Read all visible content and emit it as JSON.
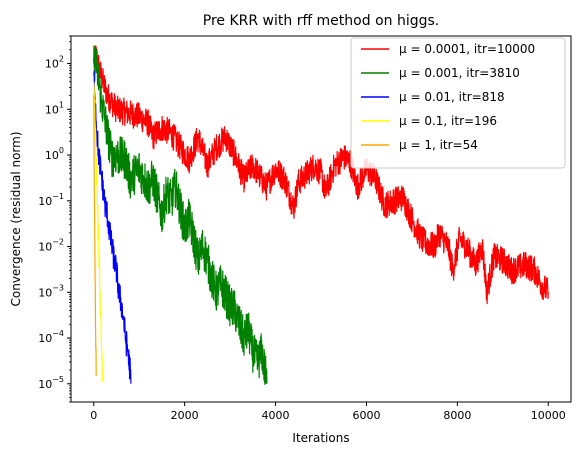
{
  "chart_data": {
    "type": "line",
    "title": "Pre KRR with rff method on higgs.",
    "xlabel": "Iterations",
    "ylabel": "Convergence (residual norm)",
    "xlim": [
      -500,
      10500
    ],
    "ylim": [
      4e-06,
      400
    ],
    "yscale": "log",
    "grid": false,
    "legend_position": "top-right",
    "xticks": [
      0,
      2000,
      4000,
      6000,
      8000,
      10000
    ],
    "xtick_labels": [
      "0",
      "2000",
      "4000",
      "6000",
      "8000",
      "10000"
    ],
    "yticks": [
      1e-05,
      0.0001,
      0.001,
      0.01,
      0.1,
      1,
      10,
      100
    ],
    "ytick_mantissa": "10",
    "ytick_exponents": [
      "−5",
      "−4",
      "−3",
      "−2",
      "−1",
      "0",
      "1",
      "2"
    ],
    "series": [
      {
        "name": "μ = 0.0001, itr=10000",
        "color": "#ff0000",
        "noise": 0.3,
        "points": [
          [
            0,
            100
          ],
          [
            50,
            150
          ],
          [
            150,
            60
          ],
          [
            300,
            20
          ],
          [
            500,
            10
          ],
          [
            800,
            8
          ],
          [
            1000,
            7
          ],
          [
            1200,
            5
          ],
          [
            1300,
            2.5
          ],
          [
            1500,
            4
          ],
          [
            1700,
            3
          ],
          [
            1900,
            1.5
          ],
          [
            2100,
            0.8
          ],
          [
            2300,
            2.5
          ],
          [
            2500,
            0.6
          ],
          [
            2700,
            1.5
          ],
          [
            2900,
            2.5
          ],
          [
            3100,
            1.0
          ],
          [
            3300,
            0.3
          ],
          [
            3500,
            0.6
          ],
          [
            3800,
            0.2
          ],
          [
            4000,
            0.5
          ],
          [
            4200,
            0.3
          ],
          [
            4400,
            0.07
          ],
          [
            4500,
            0.25
          ],
          [
            4700,
            0.4
          ],
          [
            4850,
            0.6
          ],
          [
            5000,
            0.4
          ],
          [
            5100,
            0.15
          ],
          [
            5300,
            0.6
          ],
          [
            5500,
            0.9
          ],
          [
            5650,
            0.7
          ],
          [
            5800,
            0.2
          ],
          [
            6000,
            0.5
          ],
          [
            6200,
            0.3
          ],
          [
            6400,
            0.08
          ],
          [
            6600,
            0.1
          ],
          [
            6800,
            0.12
          ],
          [
            7000,
            0.04
          ],
          [
            7200,
            0.015
          ],
          [
            7300,
            0.012
          ],
          [
            7500,
            0.01
          ],
          [
            7600,
            0.02
          ],
          [
            7800,
            0.01
          ],
          [
            7900,
            0.003
          ],
          [
            8050,
            0.015
          ],
          [
            8200,
            0.01
          ],
          [
            8400,
            0.004
          ],
          [
            8550,
            0.01
          ],
          [
            8650,
            0.001
          ],
          [
            8800,
            0.006
          ],
          [
            9000,
            0.005
          ],
          [
            9200,
            0.003
          ],
          [
            9500,
            0.004
          ],
          [
            9700,
            0.003
          ],
          [
            9850,
            0.0015
          ],
          [
            10000,
            0.001
          ]
        ]
      },
      {
        "name": "μ = 0.001, itr=3810",
        "color": "#008000",
        "noise": 0.45,
        "points": [
          [
            0,
            100
          ],
          [
            50,
            110
          ],
          [
            150,
            20
          ],
          [
            300,
            3
          ],
          [
            400,
            0.9
          ],
          [
            500,
            1.0
          ],
          [
            700,
            0.8
          ],
          [
            800,
            0.3
          ],
          [
            1000,
            0.5
          ],
          [
            1200,
            0.2
          ],
          [
            1300,
            0.3
          ],
          [
            1500,
            0.05
          ],
          [
            1600,
            0.15
          ],
          [
            1700,
            0.1
          ],
          [
            1800,
            0.2
          ],
          [
            2000,
            0.025
          ],
          [
            2100,
            0.04
          ],
          [
            2200,
            0.015
          ],
          [
            2300,
            0.005
          ],
          [
            2400,
            0.01
          ],
          [
            2500,
            0.005
          ],
          [
            2600,
            0.002
          ],
          [
            2700,
            0.001
          ],
          [
            2800,
            0.0015
          ],
          [
            3000,
            0.0005
          ],
          [
            3100,
            0.0004
          ],
          [
            3200,
            0.0002
          ],
          [
            3300,
            0.0001
          ],
          [
            3400,
            0.00015
          ],
          [
            3500,
            5e-05
          ],
          [
            3600,
            3e-05
          ],
          [
            3700,
            5e-05
          ],
          [
            3810,
            1e-05
          ]
        ]
      },
      {
        "name": "μ = 0.01, itr=818",
        "color": "#0000ff",
        "noise": 0.3,
        "points": [
          [
            0,
            60
          ],
          [
            20,
            30
          ],
          [
            60,
            5
          ],
          [
            100,
            1.2
          ],
          [
            150,
            0.5
          ],
          [
            200,
            0.2
          ],
          [
            250,
            0.08
          ],
          [
            300,
            0.05
          ],
          [
            350,
            0.02
          ],
          [
            400,
            0.01
          ],
          [
            450,
            0.005
          ],
          [
            500,
            0.003
          ],
          [
            550,
            0.001
          ],
          [
            600,
            0.0006
          ],
          [
            650,
            0.0003
          ],
          [
            700,
            0.0001
          ],
          [
            750,
            5e-05
          ],
          [
            800,
            2e-05
          ],
          [
            818,
            1e-05
          ]
        ]
      },
      {
        "name": "μ = 0.1, itr=196",
        "color": "#ffff00",
        "noise": 0.35,
        "points": [
          [
            0,
            40
          ],
          [
            20,
            10
          ],
          [
            40,
            2
          ],
          [
            60,
            0.5
          ],
          [
            80,
            0.08
          ],
          [
            100,
            0.02
          ],
          [
            120,
            0.005
          ],
          [
            140,
            0.0008
          ],
          [
            160,
            0.0002
          ],
          [
            180,
            5e-05
          ],
          [
            196,
            1.2e-05
          ]
        ]
      },
      {
        "name": "μ = 1, itr=54",
        "color": "#ffa500",
        "noise": 0.35,
        "points": [
          [
            0,
            20
          ],
          [
            8,
            1
          ],
          [
            15,
            0.1
          ],
          [
            22,
            0.02
          ],
          [
            30,
            0.003
          ],
          [
            38,
            0.0005
          ],
          [
            46,
            8e-05
          ],
          [
            54,
            1.5e-05
          ]
        ]
      }
    ]
  }
}
